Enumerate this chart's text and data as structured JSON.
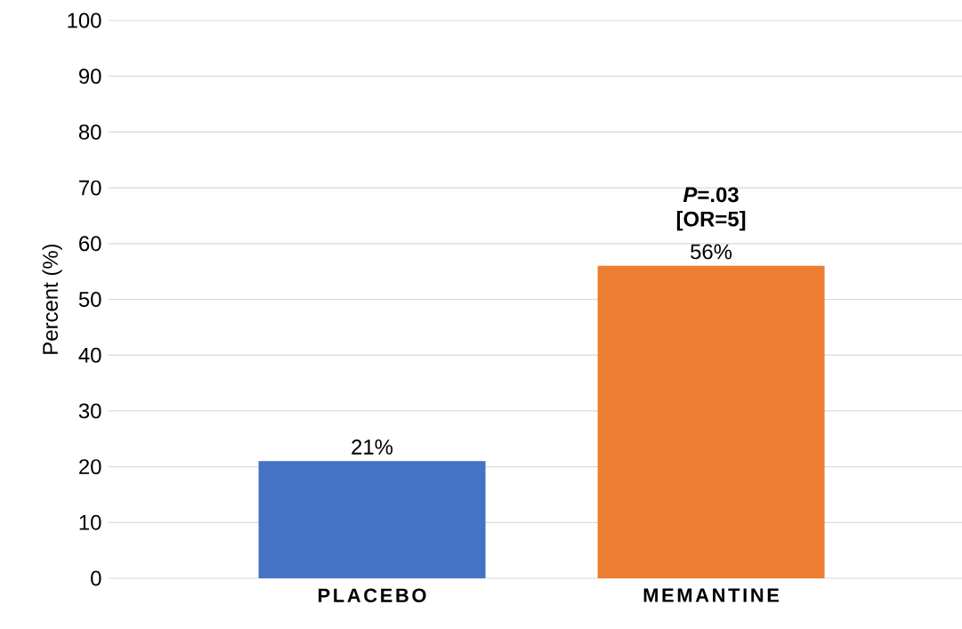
{
  "chart_data": {
    "type": "bar",
    "ylabel": "Percent (%)",
    "categories": [
      "PLACEBO",
      "MEMANTINE"
    ],
    "values": [
      21,
      56
    ],
    "colors": [
      "#4472c4",
      "#ed7d31"
    ],
    "value_labels": [
      "21%",
      "56%"
    ],
    "ylim": [
      0,
      100
    ],
    "yticks": [
      0,
      10,
      20,
      30,
      40,
      50,
      60,
      70,
      80,
      90,
      100
    ],
    "grid": "y",
    "annotations": [
      {
        "text": "*P*=.03",
        "x": "MEMANTINE",
        "y": 56
      },
      {
        "text": "[OR=5]",
        "x": "MEMANTINE",
        "y": 56
      }
    ]
  }
}
